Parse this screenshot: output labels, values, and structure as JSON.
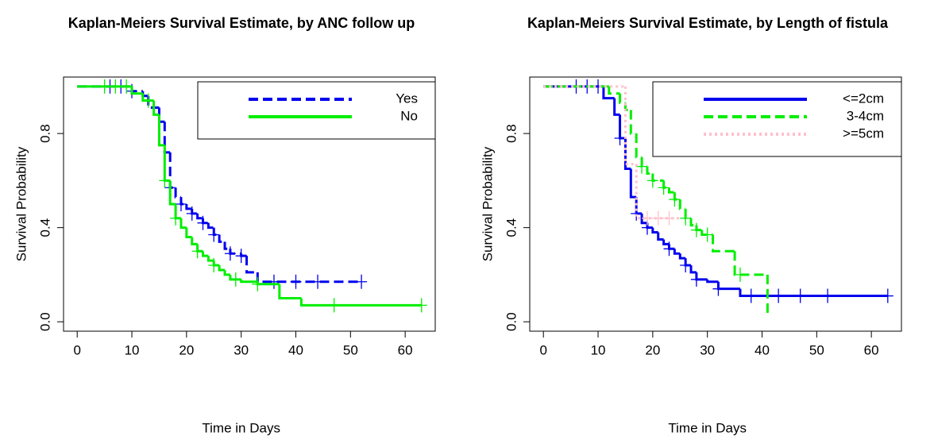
{
  "chart_data": [
    {
      "type": "km",
      "title": "Kaplan-Meiers Survival Estimate, by ANC follow up",
      "x_label": "Time in Days",
      "y_label": "Survival Probability",
      "xlim": [
        -2.5,
        65.5
      ],
      "ylim": [
        -0.04,
        1.04
      ],
      "xticks": [
        0,
        10,
        20,
        30,
        40,
        50,
        60
      ],
      "yticks": [
        {
          "value": 0,
          "label": "0.0"
        },
        {
          "value": 0.4,
          "label": "0.4"
        },
        {
          "value": 0.8,
          "label": "0.8"
        }
      ],
      "legend": "top-right",
      "series": [
        {
          "name": "Yes",
          "color": "#0000ee",
          "dash": "dashed",
          "x": [
            0,
            10,
            12,
            13,
            15,
            16,
            17,
            18,
            19,
            20,
            21,
            22,
            23,
            24,
            25,
            26,
            27,
            28,
            30,
            31,
            33,
            52
          ],
          "values": [
            1,
            0.98,
            0.96,
            0.91,
            0.85,
            0.72,
            0.57,
            0.53,
            0.5,
            0.48,
            0.46,
            0.44,
            0.42,
            0.4,
            0.37,
            0.34,
            0.31,
            0.29,
            0.28,
            0.21,
            0.17,
            0.17
          ],
          "censor_x": [
            6,
            8,
            10,
            17,
            19,
            21,
            23,
            25,
            28,
            30,
            36,
            40,
            44,
            52
          ],
          "censor_values": [
            1,
            1,
            0.98,
            0.57,
            0.5,
            0.46,
            0.42,
            0.37,
            0.29,
            0.28,
            0.17,
            0.17,
            0.17,
            0.17
          ]
        },
        {
          "name": "No",
          "color": "#00ee00",
          "dash": "solid",
          "x": [
            0,
            10,
            12,
            14,
            15,
            16,
            17,
            18,
            19,
            20,
            21,
            22,
            23,
            24,
            25,
            26,
            27,
            28,
            30,
            33,
            37,
            41,
            63
          ],
          "values": [
            1,
            0.97,
            0.94,
            0.88,
            0.75,
            0.6,
            0.5,
            0.44,
            0.4,
            0.36,
            0.33,
            0.3,
            0.28,
            0.26,
            0.24,
            0.22,
            0.2,
            0.18,
            0.17,
            0.16,
            0.1,
            0.07,
            0.07
          ],
          "censor_x": [
            5,
            7,
            9,
            13,
            16,
            18,
            22,
            25,
            29,
            33,
            47,
            63
          ],
          "censor_values": [
            1,
            1,
            1,
            0.94,
            0.6,
            0.44,
            0.3,
            0.24,
            0.18,
            0.16,
            0.07,
            0.07
          ]
        }
      ]
    },
    {
      "type": "km",
      "title": "Kaplan-Meiers Survival Estimate, by Length of fistula",
      "x_label": "Time in Days",
      "y_label": "Survival Probability",
      "xlim": [
        -2.5,
        65.5
      ],
      "ylim": [
        -0.04,
        1.04
      ],
      "xticks": [
        0,
        10,
        20,
        30,
        40,
        50,
        60
      ],
      "yticks": [
        {
          "value": 0,
          "label": "0.0"
        },
        {
          "value": 0.4,
          "label": "0.4"
        },
        {
          "value": 0.8,
          "label": "0.8"
        }
      ],
      "legend": "top-right",
      "series": [
        {
          "name": "<=2cm",
          "color": "#0000ee",
          "dash": "solid",
          "x": [
            0,
            11,
            13,
            14,
            15,
            16,
            17,
            18,
            19,
            20,
            21,
            22,
            23,
            24,
            25,
            26,
            27,
            28,
            30,
            32,
            36,
            63
          ],
          "values": [
            1,
            0.95,
            0.88,
            0.78,
            0.65,
            0.53,
            0.46,
            0.42,
            0.4,
            0.38,
            0.35,
            0.33,
            0.31,
            0.29,
            0.27,
            0.24,
            0.21,
            0.18,
            0.17,
            0.14,
            0.11,
            0.11
          ],
          "censor_x": [
            6,
            8,
            10,
            14,
            17,
            19,
            23,
            26,
            28,
            32,
            38,
            43,
            47,
            52,
            63
          ],
          "censor_values": [
            1,
            1,
            1,
            0.78,
            0.46,
            0.4,
            0.31,
            0.24,
            0.18,
            0.14,
            0.11,
            0.11,
            0.11,
            0.11,
            0.11
          ]
        },
        {
          "name": "3-4cm",
          "color": "#00ee00",
          "dash": "dashed",
          "x": [
            0,
            12,
            14,
            15,
            16,
            17,
            18,
            19,
            20,
            22,
            23,
            24,
            25,
            26,
            27,
            28,
            29,
            31,
            35,
            41
          ],
          "values": [
            1,
            0.97,
            0.93,
            0.9,
            0.8,
            0.7,
            0.66,
            0.63,
            0.6,
            0.57,
            0.55,
            0.52,
            0.48,
            0.44,
            0.41,
            0.39,
            0.37,
            0.3,
            0.2,
            0.02
          ],
          "censor_x": [
            18,
            20,
            22,
            24,
            26,
            28,
            30,
            36
          ],
          "censor_values": [
            0.66,
            0.6,
            0.57,
            0.52,
            0.44,
            0.39,
            0.37,
            0.2
          ]
        },
        {
          "name": ">=5cm",
          "color": "#ffc0cb",
          "dash": "dotted",
          "x": [
            0,
            15,
            17,
            25
          ],
          "values": [
            1,
            0.67,
            0.44,
            0.44
          ],
          "censor_x": [
            19,
            21,
            23
          ],
          "censor_values": [
            0.44,
            0.44,
            0.44
          ]
        }
      ]
    }
  ]
}
